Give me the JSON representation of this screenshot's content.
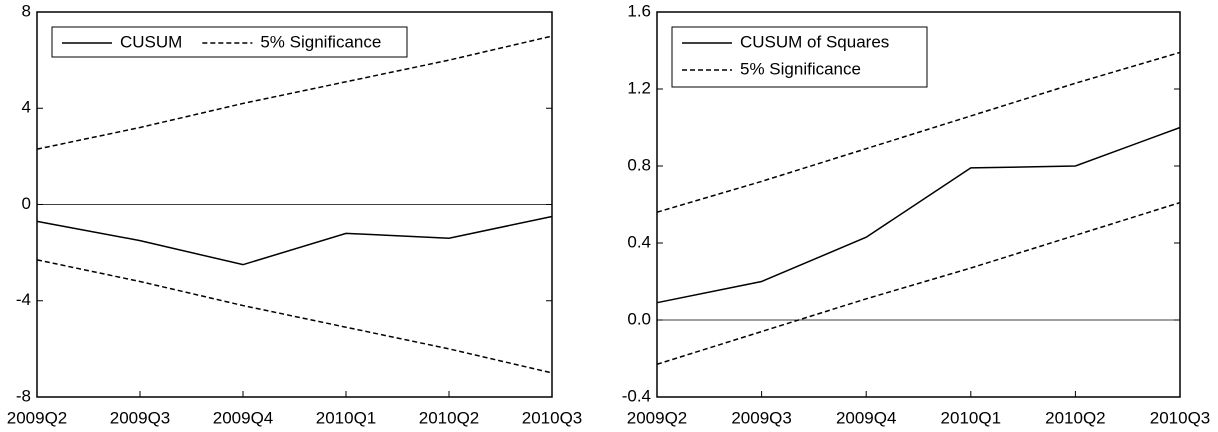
{
  "chart_data": [
    {
      "type": "line",
      "categories": [
        "2009Q2",
        "2009Q3",
        "2009Q4",
        "2010Q1",
        "2010Q2",
        "2010Q3"
      ],
      "series": [
        {
          "name": "CUSUM",
          "color": "#000000",
          "dash": false,
          "values": [
            -0.7,
            -1.5,
            -2.5,
            -1.2,
            -1.4,
            -0.5
          ]
        },
        {
          "name": "5% Significance",
          "color": "#000000",
          "dash": true,
          "values": [
            2.3,
            3.2,
            4.2,
            5.1,
            6.0,
            7.0
          ],
          "lower": [
            -2.3,
            -3.2,
            -4.2,
            -5.1,
            -6.0,
            -7.0
          ]
        }
      ],
      "ylim": [
        -8,
        8
      ],
      "yticks": [
        -8,
        -4,
        0,
        4,
        8
      ],
      "zero_line": true,
      "legend": "top-left",
      "legend_layout": "horizontal"
    },
    {
      "type": "line",
      "categories": [
        "2009Q2",
        "2009Q3",
        "2009Q4",
        "2010Q1",
        "2010Q2",
        "2010Q3"
      ],
      "series": [
        {
          "name": "CUSUM of Squares",
          "color": "#000000",
          "dash": false,
          "values": [
            0.09,
            0.2,
            0.43,
            0.79,
            0.8,
            1.0
          ]
        },
        {
          "name": "5% Significance",
          "color": "#000000",
          "dash": true,
          "values": [
            0.56,
            0.72,
            0.89,
            1.06,
            1.23,
            1.39
          ],
          "lower": [
            -0.23,
            -0.06,
            0.11,
            0.27,
            0.44,
            0.61
          ]
        }
      ],
      "ylim": [
        -0.4,
        1.6
      ],
      "yticks": [
        -0.4,
        {
          "value": 0,
          "label": "0.0"
        },
        0.4,
        0.8,
        1.2,
        1.6
      ],
      "zero_line": true,
      "legend": "top-left",
      "legend_layout": "vertical"
    }
  ]
}
